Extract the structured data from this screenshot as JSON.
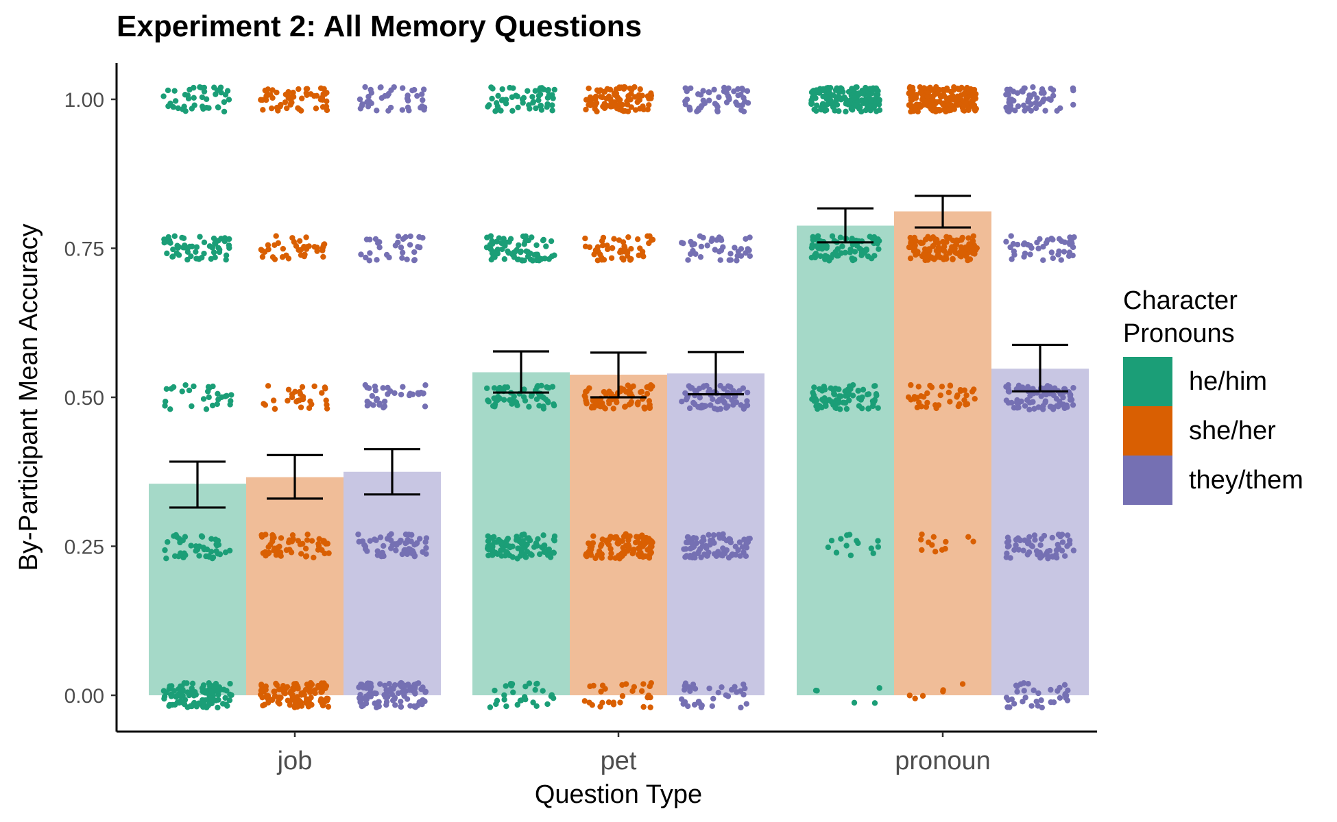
{
  "chart_data": {
    "type": "bar",
    "title": "Experiment 2: All Memory Questions",
    "xlabel": "Question Type",
    "ylabel": "By-Participant Mean Accuracy",
    "ylim": [
      0,
      1.05
    ],
    "yticks": [
      "0.00",
      "0.25",
      "0.50",
      "0.75",
      "1.00"
    ],
    "categories": [
      "job",
      "pet",
      "pronoun"
    ],
    "legend": {
      "title": "Character Pronouns",
      "position": "right"
    },
    "series": [
      {
        "name": "he/him",
        "color": "#1b9e77",
        "bar_color": "#a5d9c8",
        "values": [
          0.355,
          0.542,
          0.788
        ],
        "error_low": [
          0.315,
          0.508,
          0.76
        ],
        "error_high": [
          0.392,
          0.577,
          0.817
        ],
        "point_counts": {
          "job": [
            110,
            45,
            28,
            55,
            42
          ],
          "pet": [
            30,
            95,
            55,
            72,
            55
          ],
          "pronoun": [
            5,
            14,
            75,
            80,
            170
          ]
        }
      },
      {
        "name": "she/her",
        "color": "#d95f02",
        "bar_color": "#f0bd98",
        "values": [
          0.366,
          0.538,
          0.812
        ],
        "error_low": [
          0.33,
          0.5,
          0.785
        ],
        "error_high": [
          0.403,
          0.575,
          0.838
        ],
        "point_counts": {
          "job": [
            115,
            55,
            30,
            38,
            55
          ],
          "pet": [
            28,
            110,
            80,
            50,
            90
          ],
          "pronoun": [
            6,
            12,
            40,
            120,
            190
          ]
        }
      },
      {
        "name": "they/them",
        "color": "#7570b3",
        "bar_color": "#c8c6e3",
        "values": [
          0.375,
          0.54,
          0.548
        ],
        "error_low": [
          0.337,
          0.505,
          0.51
        ],
        "error_high": [
          0.413,
          0.576,
          0.588
        ],
        "point_counts": {
          "job": [
            105,
            62,
            35,
            32,
            40
          ],
          "pet": [
            35,
            80,
            70,
            40,
            55
          ],
          "pronoun": [
            35,
            60,
            85,
            45,
            55
          ]
        }
      }
    ]
  }
}
